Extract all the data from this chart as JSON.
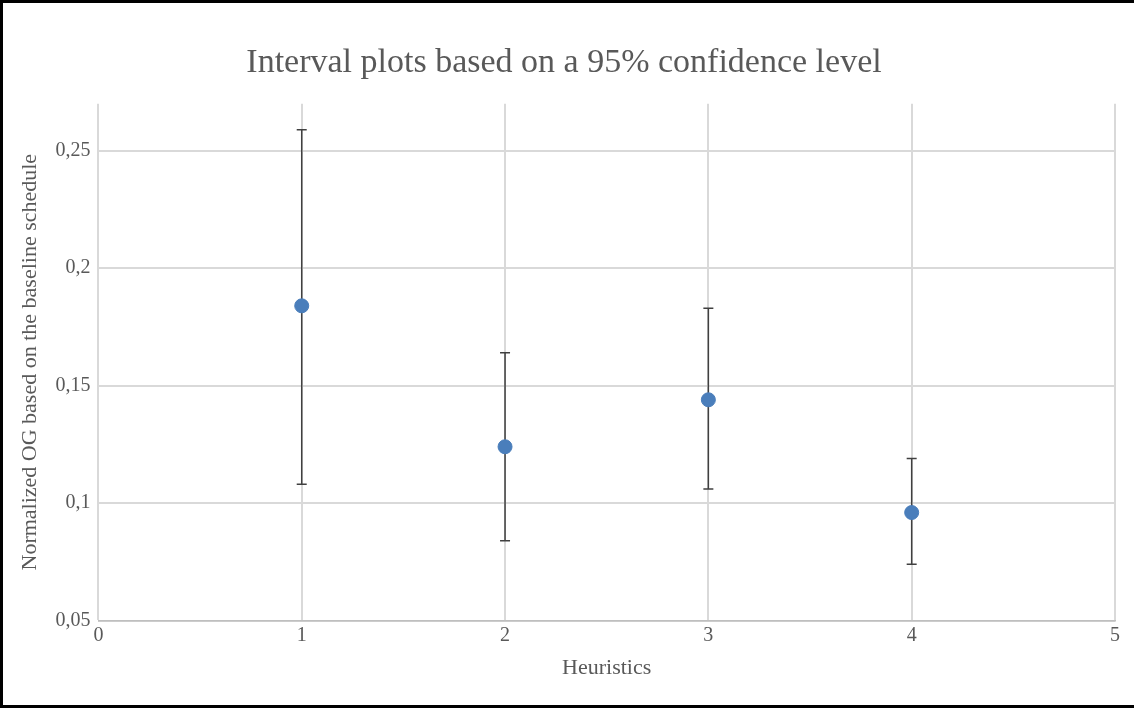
{
  "chart_data": {
    "type": "scatter",
    "title": "Interval plots based on a 95% confidence level",
    "xlabel": "Heuristics",
    "ylabel": "Normalized OG based on the baseline schedule",
    "x": [
      1,
      2,
      3,
      4
    ],
    "series": [
      {
        "color": "#4a7ebb",
        "values": [
          0.184,
          0.124,
          0.144,
          0.096
        ],
        "errors": [
          [
            0.108,
            0.259
          ],
          [
            0.084,
            0.164
          ],
          [
            0.106,
            0.183
          ],
          [
            0.074,
            0.119
          ]
        ]
      }
    ],
    "xlim": [
      0,
      5
    ],
    "xticks": [
      0,
      1,
      2,
      3,
      4,
      5
    ],
    "ylim": [
      0.05,
      0.27
    ],
    "yticks": [
      {
        "value": 0.05,
        "label": "0,05"
      },
      {
        "value": 0.1,
        "label": "0,1"
      },
      {
        "value": 0.15,
        "label": "0,15"
      },
      {
        "value": 0.2,
        "label": "0,2"
      },
      {
        "value": 0.25,
        "label": "0,25"
      }
    ],
    "grid": true,
    "marker": "circle",
    "legend": false
  }
}
